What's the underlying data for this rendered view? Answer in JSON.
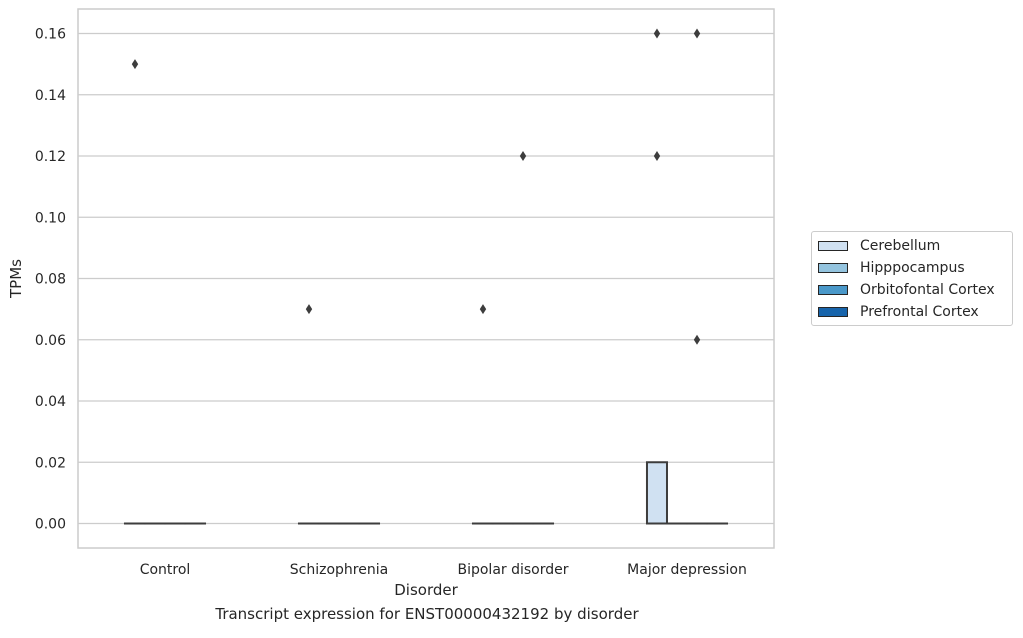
{
  "chart_data": {
    "type": "box",
    "xlabel": "Disorder",
    "ylabel": "TPMs",
    "caption": "Transcript expression for ENST00000432192 by disorder",
    "categories": [
      "Control",
      "Schizophrenia",
      "Bipolar disorder",
      "Major depression"
    ],
    "ylim": [
      -0.008,
      0.168
    ],
    "yticks": [
      "0.00",
      "0.02",
      "0.04",
      "0.06",
      "0.08",
      "0.10",
      "0.12",
      "0.14",
      "0.16"
    ],
    "grid": true,
    "legend_position": "right",
    "series": [
      {
        "name": "Cerebellum",
        "color": "#d0e1f2",
        "boxes": [
          {
            "q1": 0,
            "median": 0,
            "q3": 0,
            "whisker_low": 0,
            "whisker_high": 0
          },
          {
            "q1": 0,
            "median": 0,
            "q3": 0,
            "whisker_low": 0,
            "whisker_high": 0
          },
          {
            "q1": 0,
            "median": 0,
            "q3": 0,
            "whisker_low": 0,
            "whisker_high": 0
          },
          {
            "q1": 0,
            "median": 0,
            "q3": 0.02,
            "whisker_low": 0,
            "whisker_high": 0.02
          }
        ],
        "outliers": [
          [
            0.15
          ],
          [
            0.07
          ],
          [
            0.07
          ],
          [
            0.16,
            0.12
          ]
        ]
      },
      {
        "name": "Hipppocampus",
        "color": "#94c4df",
        "boxes": [
          {
            "q1": 0,
            "median": 0,
            "q3": 0,
            "whisker_low": 0,
            "whisker_high": 0
          },
          {
            "q1": 0,
            "median": 0,
            "q3": 0,
            "whisker_low": 0,
            "whisker_high": 0
          },
          {
            "q1": 0,
            "median": 0,
            "q3": 0,
            "whisker_low": 0,
            "whisker_high": 0
          },
          {
            "q1": 0,
            "median": 0,
            "q3": 0,
            "whisker_low": 0,
            "whisker_high": 0
          }
        ],
        "outliers": [
          [],
          [],
          [],
          []
        ]
      },
      {
        "name": "Orbitofontal Cortex",
        "color": "#4a98c9",
        "boxes": [
          {
            "q1": 0,
            "median": 0,
            "q3": 0,
            "whisker_low": 0,
            "whisker_high": 0
          },
          {
            "q1": 0,
            "median": 0,
            "q3": 0,
            "whisker_low": 0,
            "whisker_high": 0
          },
          {
            "q1": 0,
            "median": 0,
            "q3": 0,
            "whisker_low": 0,
            "whisker_high": 0
          },
          {
            "q1": 0,
            "median": 0,
            "q3": 0,
            "whisker_low": 0,
            "whisker_high": 0
          }
        ],
        "outliers": [
          [],
          [],
          [
            0.12
          ],
          [
            0.16,
            0.06
          ]
        ]
      },
      {
        "name": "Prefrontal Cortex",
        "color": "#1764ab",
        "boxes": [
          {
            "q1": 0,
            "median": 0,
            "q3": 0,
            "whisker_low": 0,
            "whisker_high": 0
          },
          {
            "q1": 0,
            "median": 0,
            "q3": 0,
            "whisker_low": 0,
            "whisker_high": 0
          },
          {
            "q1": 0,
            "median": 0,
            "q3": 0,
            "whisker_low": 0,
            "whisker_high": 0
          },
          {
            "q1": 0,
            "median": 0,
            "q3": 0,
            "whisker_low": 0,
            "whisker_high": 0
          }
        ],
        "outliers": [
          [],
          [],
          [],
          []
        ]
      }
    ]
  }
}
